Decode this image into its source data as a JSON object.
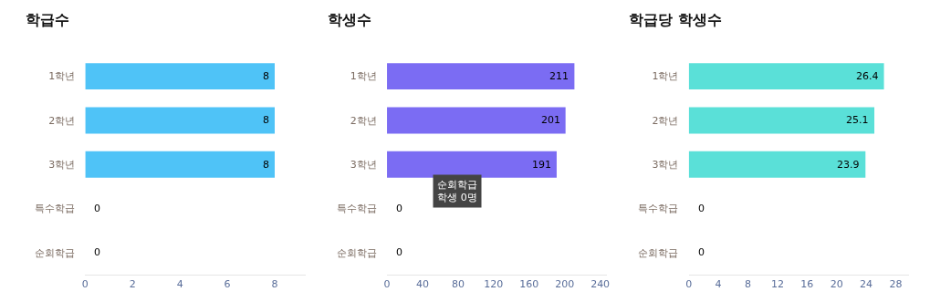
{
  "chart_data": [
    {
      "type": "bar",
      "orientation": "horizontal",
      "title": "학급수",
      "categories": [
        "1학년",
        "2학년",
        "3학년",
        "특수학급",
        "순회학급"
      ],
      "values": [
        8,
        8,
        8,
        0,
        0
      ],
      "color": "#4fc3f7",
      "xlim": [
        0,
        9.3
      ],
      "xticks": [
        0,
        2,
        4,
        6,
        8
      ],
      "data_labels": true
    },
    {
      "type": "bar",
      "orientation": "horizontal",
      "title": "학생수",
      "categories": [
        "1학년",
        "2학년",
        "3학년",
        "특수학급",
        "순회학급"
      ],
      "values": [
        211,
        201,
        191,
        0,
        0
      ],
      "color": "#7b6cf3",
      "xlim": [
        0,
        248
      ],
      "xticks": [
        0,
        40,
        80,
        120,
        160,
        200,
        240
      ],
      "data_labels": true,
      "annotations": [
        "순회학급\n학생 0명"
      ]
    },
    {
      "type": "bar",
      "orientation": "horizontal",
      "title": "학급당 학생수",
      "categories": [
        "1학년",
        "2학년",
        "3학년",
        "특수학급",
        "순회학급"
      ],
      "values": [
        26.4,
        25.1,
        23.9,
        0,
        0
      ],
      "color": "#5ae0d8",
      "xlim": [
        0,
        29.8
      ],
      "xticks": [
        0,
        4,
        8,
        12,
        16,
        20,
        24,
        28
      ],
      "data_labels": true
    }
  ]
}
